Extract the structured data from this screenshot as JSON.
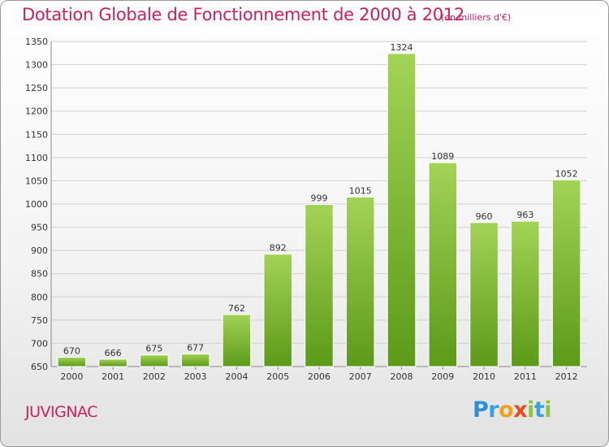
{
  "header": {
    "title": "Dotation Globale de Fonctionnement de 2000 à 2012",
    "unit": "(en milliers d'€)"
  },
  "footer": {
    "commune": "JUVIGNAC",
    "logo": "Proxiti"
  },
  "colors": {
    "title": "#cc1f5e",
    "bar_top": "#a3d356",
    "bar_bottom": "#5c9a18",
    "grid": "#d0d0d0"
  },
  "chart_data": {
    "type": "bar",
    "title": "Dotation Globale de Fonctionnement de 2000 à 2012",
    "xlabel": "",
    "ylabel": "",
    "categories": [
      "2000",
      "2001",
      "2002",
      "2003",
      "2004",
      "2005",
      "2006",
      "2007",
      "2008",
      "2009",
      "2010",
      "2011",
      "2012"
    ],
    "values": [
      670,
      666,
      675,
      677,
      762,
      892,
      999,
      1015,
      1324,
      1089,
      960,
      963,
      1052
    ],
    "ylim": [
      650,
      1350
    ],
    "yticks": [
      650,
      700,
      750,
      800,
      850,
      900,
      950,
      1000,
      1050,
      1100,
      1150,
      1200,
      1250,
      1300,
      1350
    ],
    "grid": true,
    "data_labels": true
  }
}
